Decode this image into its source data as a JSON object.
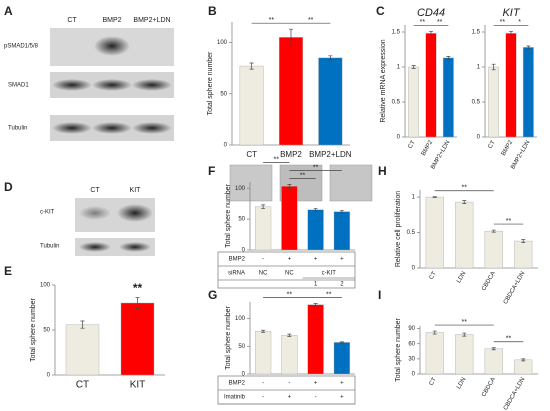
{
  "panel_labels": [
    "A",
    "B",
    "C",
    "D",
    "E",
    "F",
    "G",
    "H",
    "I"
  ],
  "blot_A": {
    "lanes": [
      "CT",
      "BMP2",
      "BMP2+LDN"
    ],
    "rows": [
      "pSMAD1/5/8",
      "SMAD1",
      "Tubulin"
    ]
  },
  "blot_D": {
    "lanes": [
      "CT",
      "KIT"
    ],
    "rows": [
      "c-KIT",
      "Tubulin"
    ]
  },
  "chart_data": [
    {
      "type": "bar",
      "y_label": "Total sphere number",
      "categories": [
        "CT",
        "BMP2",
        "BMP2+LDN"
      ],
      "values": [
        77,
        105,
        85
      ],
      "errors": [
        3,
        8,
        2
      ],
      "colors": [
        "#eeebe0",
        "#ff0000",
        "#0070c0"
      ],
      "ylim": [
        0,
        120
      ],
      "yticks": [
        0,
        50,
        100
      ],
      "annotations": [
        "**",
        "**"
      ]
    },
    {
      "type": "bar",
      "title": "CD44",
      "y_label": "Relative mRNA expression",
      "categories": [
        "CT",
        "BMP2",
        "BMP2+LDN"
      ],
      "values": [
        1.0,
        1.48,
        1.13
      ],
      "errors": [
        0.02,
        0.03,
        0.02
      ],
      "colors": [
        "#eeebe0",
        "#ff0000",
        "#0070c0"
      ],
      "ylim": [
        0,
        1.6
      ],
      "yticks": [
        0,
        0.5,
        1,
        1.5
      ],
      "annotations": [
        "**",
        "**"
      ]
    },
    {
      "type": "bar",
      "title": "KIT",
      "categories": [
        "CT",
        "BMP2",
        "BMP2+LDN"
      ],
      "values": [
        1.0,
        1.48,
        1.28
      ],
      "errors": [
        0.04,
        0.03,
        0.02
      ],
      "colors": [
        "#eeebe0",
        "#ff0000",
        "#0070c0"
      ],
      "ylim": [
        0,
        1.6
      ],
      "yticks": [
        0,
        0.5,
        1,
        1.5
      ],
      "annotations": [
        "**",
        "*"
      ]
    },
    {
      "type": "bar",
      "y_label": "Total sphere number",
      "categories": [
        "CT",
        "KIT"
      ],
      "values": [
        56,
        80
      ],
      "errors": [
        4,
        6
      ],
      "colors": [
        "#eeebe0",
        "#ff0000"
      ],
      "ylim": [
        0,
        100
      ],
      "yticks": [
        0,
        50,
        100
      ],
      "annotations": [
        "**"
      ]
    },
    {
      "type": "bar",
      "y_label": "Total sphere number",
      "values": [
        70,
        103,
        65,
        62
      ],
      "errors": [
        3,
        3,
        2,
        2
      ],
      "colors": [
        "#eeebe0",
        "#ff0000",
        "#0070c0",
        "#0070c0"
      ],
      "ylim": [
        0,
        110
      ],
      "yticks": [
        0,
        50,
        100
      ],
      "annotations": [
        "**",
        "**",
        "**"
      ],
      "rows": [
        {
          "label": "BMP2",
          "cells": [
            "-",
            "+",
            "+",
            "+"
          ]
        },
        {
          "label": "siRNA",
          "cells": [
            "NC",
            "NC",
            "c-KIT"
          ],
          "sub": [
            "1",
            "2"
          ]
        }
      ]
    },
    {
      "type": "bar",
      "y_label": "Total sphere number",
      "values": [
        77,
        70,
        125,
        57
      ],
      "errors": [
        2,
        2,
        2,
        1
      ],
      "colors": [
        "#eeebe0",
        "#eeebe0",
        "#ff0000",
        "#0070c0"
      ],
      "ylim": [
        0,
        130
      ],
      "yticks": [
        0,
        50,
        100
      ],
      "annotations": [
        "**",
        "**"
      ],
      "rows": [
        {
          "label": "BMP2",
          "cells": [
            "-",
            "-",
            "+",
            "+"
          ]
        },
        {
          "label": "Imatinib",
          "cells": [
            "-",
            "+",
            "-",
            "+"
          ]
        }
      ]
    },
    {
      "type": "bar",
      "y_label": "Relative cell proliferation",
      "categories": [
        "CT",
        "LDN",
        "CBDCA",
        "CBDCA+LDN"
      ],
      "values": [
        1.0,
        0.93,
        0.52,
        0.38
      ],
      "errors": [
        0.005,
        0.02,
        0.015,
        0.02
      ],
      "colors": [
        "#eeebe0",
        "#eeebe0",
        "#eeebe0",
        "#eeebe0"
      ],
      "ylim": [
        0,
        1.1
      ],
      "yticks": [
        0,
        0.5,
        1
      ],
      "annotations": [
        "**",
        "**"
      ]
    },
    {
      "type": "bar",
      "y_label": "Total sphere number",
      "categories": [
        "CT",
        "LDN",
        "CBDCA",
        "CBDCA+LDN"
      ],
      "values": [
        82,
        78,
        50,
        28
      ],
      "errors": [
        3,
        3,
        2,
        2
      ],
      "colors": [
        "#eeebe0",
        "#eeebe0",
        "#eeebe0",
        "#eeebe0"
      ],
      "ylim": [
        0,
        95
      ],
      "yticks": [
        0,
        30,
        60,
        90
      ],
      "annotations": [
        "**",
        "**"
      ]
    }
  ]
}
